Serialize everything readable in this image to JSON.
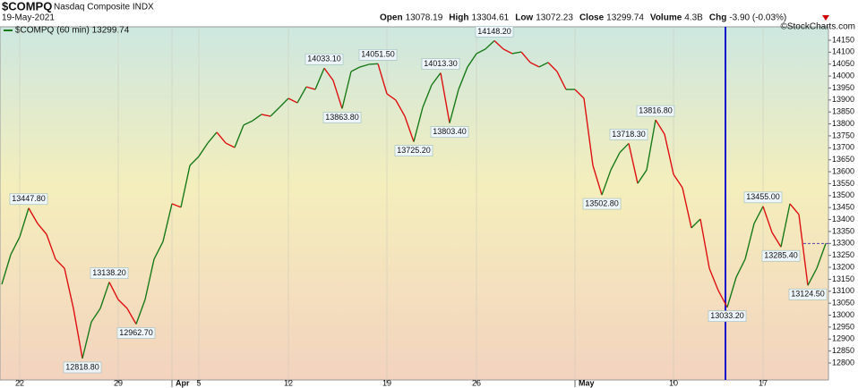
{
  "chart_data": {
    "type": "line",
    "symbol": "$COMPQ",
    "name": "Nasdaq Composite INDX",
    "date": "19-May-2021",
    "quote": {
      "open_label": "Open",
      "open": 13078.19,
      "high_label": "High",
      "high": 13304.61,
      "low_label": "Low",
      "low": 13072.23,
      "close_label": "Close",
      "close": 13299.74,
      "volume_label": "Volume",
      "volume": "4.3B",
      "chg_label": "Chg",
      "chg": "-3.90 (-0.03%)"
    },
    "credit": "©StockCharts.com",
    "legend_text": "$COMPQ (60 min) 13299.74",
    "up_color": "#1a7a1a",
    "down_color": "#dd1111",
    "categories": [
      null,
      null,
      "22",
      null,
      null,
      null,
      null,
      null,
      null,
      null,
      null,
      null,
      null,
      "29",
      null,
      null,
      null,
      null,
      null,
      "Apr",
      null,
      null,
      "5",
      null,
      null,
      null,
      null,
      null,
      null,
      null,
      null,
      null,
      "12",
      null,
      null,
      null,
      null,
      null,
      null,
      null,
      null,
      null,
      null,
      "19",
      null,
      null,
      null,
      null,
      null,
      null,
      null,
      null,
      null,
      "26",
      null,
      null,
      null,
      null,
      null,
      null,
      null,
      null,
      null,
      null,
      "May",
      null,
      null,
      null,
      null,
      null,
      null,
      null,
      null,
      null,
      null,
      "10",
      null,
      null,
      null,
      null,
      null,
      null,
      null,
      null,
      null,
      "17",
      null,
      null,
      null,
      null,
      null,
      null,
      null
    ],
    "series": [
      {
        "name": "$COMPQ",
        "values": [
          13129,
          13253,
          13327,
          13447.8,
          13383,
          13338,
          13234,
          13196,
          13028,
          12818.8,
          12972,
          13028,
          13138.2,
          13065,
          13028,
          12962.7,
          13065,
          13234,
          13308,
          13466,
          13451,
          13626,
          13664,
          13720,
          13765,
          13720,
          13701,
          13795,
          13813,
          13840,
          13832,
          13869,
          13907,
          13888,
          13955,
          13944,
          14033.1,
          13982,
          13863.8,
          14019,
          14038,
          14049,
          14051.5,
          13926,
          13899,
          13832,
          13725.2,
          13869,
          13963,
          14013.3,
          13803.4,
          13944,
          14038,
          14094,
          14113,
          14148.2,
          14113,
          14094,
          14101,
          14057,
          14038,
          14057,
          14019,
          13944,
          13944,
          13907,
          13626,
          13502.8,
          13607,
          13680,
          13718.3,
          13551,
          13607,
          13816.8,
          13757,
          13589,
          13533,
          13365,
          13402,
          13196,
          13103,
          13033.2,
          13159,
          13234,
          13383,
          13455,
          13346,
          13285.4,
          13466,
          13421,
          13124.5,
          13196,
          13299.74
        ],
        "value_labels": [
          null,
          null,
          null,
          "13447.80",
          null,
          null,
          null,
          null,
          null,
          "12818.80",
          null,
          null,
          "13138.20",
          null,
          null,
          "12962.70",
          null,
          null,
          null,
          null,
          null,
          null,
          null,
          null,
          null,
          null,
          null,
          null,
          null,
          null,
          null,
          null,
          null,
          null,
          null,
          null,
          "14033.10",
          null,
          "13863.80",
          null,
          null,
          null,
          "14051.50",
          null,
          null,
          null,
          "13725.20",
          null,
          null,
          "14013.30",
          "13803.40",
          null,
          null,
          null,
          null,
          "14148.20",
          null,
          null,
          null,
          null,
          null,
          null,
          null,
          null,
          null,
          null,
          null,
          "13502.80",
          null,
          null,
          "13718.30",
          null,
          null,
          "13816.80",
          null,
          null,
          null,
          null,
          null,
          null,
          null,
          "13033.20",
          null,
          null,
          null,
          "13455.00",
          null,
          "13285.40",
          null,
          null,
          "13124.50",
          null,
          null
        ]
      }
    ],
    "ylim": [
      12729,
      14206
    ],
    "yticks": [
      12800,
      12850,
      12900,
      12950,
      13000,
      13050,
      13100,
      13150,
      13200,
      13250,
      13300,
      13350,
      13400,
      13450,
      13500,
      13550,
      13600,
      13650,
      13700,
      13750,
      13800,
      13850,
      13900,
      13950,
      14000,
      14050,
      14100,
      14150
    ]
  }
}
